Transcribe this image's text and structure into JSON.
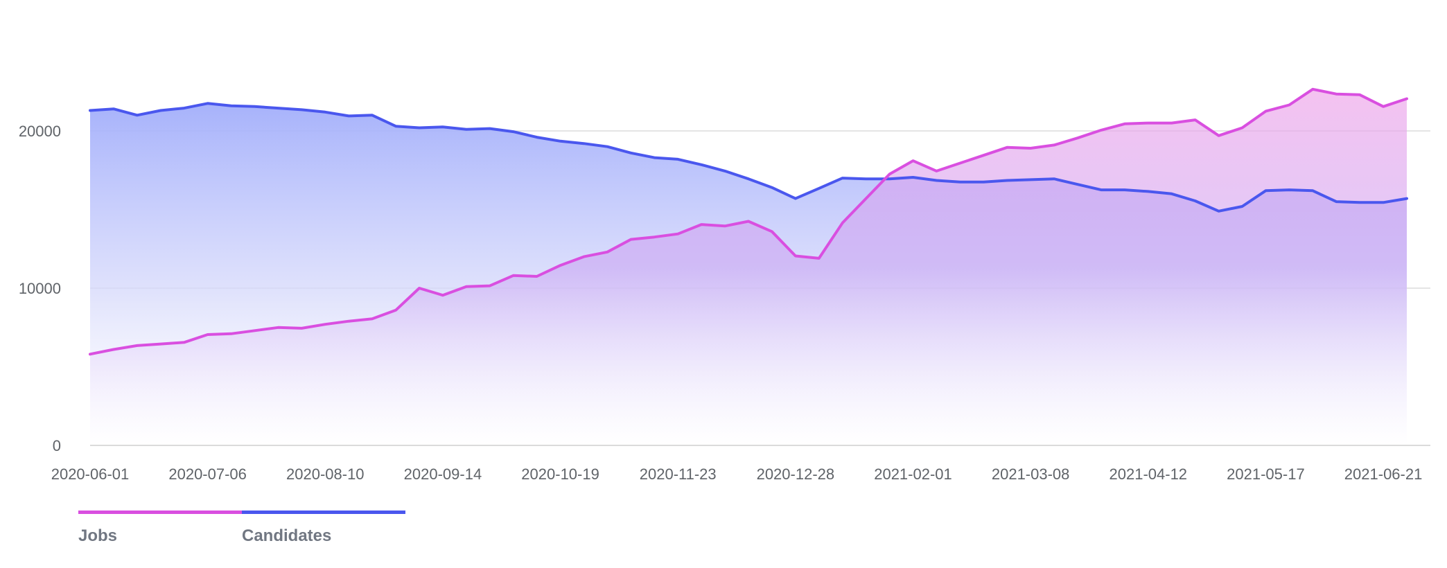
{
  "chart_data": {
    "type": "area",
    "title": "",
    "xlabel": "",
    "ylabel": "",
    "ylim": [
      0,
      26000
    ],
    "yticks": [
      0,
      10000,
      20000
    ],
    "grid": "horizontal",
    "legend_position": "bottom-left",
    "x_tick_labels": [
      "2020-06-01",
      "2020-07-06",
      "2020-08-10",
      "2020-09-14",
      "2020-10-19",
      "2020-11-23",
      "2020-12-28",
      "2021-02-01",
      "2021-03-08",
      "2021-04-12",
      "2021-05-17",
      "2021-06-21"
    ],
    "x": [
      "2020-06-01",
      "2020-06-08",
      "2020-06-15",
      "2020-06-22",
      "2020-06-29",
      "2020-07-06",
      "2020-07-13",
      "2020-07-20",
      "2020-07-27",
      "2020-08-03",
      "2020-08-10",
      "2020-08-17",
      "2020-08-24",
      "2020-08-31",
      "2020-09-07",
      "2020-09-14",
      "2020-09-21",
      "2020-09-28",
      "2020-10-05",
      "2020-10-12",
      "2020-10-19",
      "2020-10-26",
      "2020-11-02",
      "2020-11-09",
      "2020-11-16",
      "2020-11-23",
      "2020-11-30",
      "2020-12-07",
      "2020-12-14",
      "2020-12-21",
      "2020-12-28",
      "2021-01-04",
      "2021-01-11",
      "2021-01-18",
      "2021-01-25",
      "2021-02-01",
      "2021-02-08",
      "2021-02-15",
      "2021-02-22",
      "2021-03-01",
      "2021-03-08",
      "2021-03-15",
      "2021-03-22",
      "2021-03-29",
      "2021-04-05",
      "2021-04-12",
      "2021-04-19",
      "2021-04-26",
      "2021-05-03",
      "2021-05-10",
      "2021-05-17",
      "2021-05-24",
      "2021-05-31",
      "2021-06-07",
      "2021-06-14",
      "2021-06-21",
      "2021-06-28"
    ],
    "series": [
      {
        "name": "Jobs",
        "color": "#d94fe0",
        "values": [
          5800,
          6100,
          6350,
          6450,
          6550,
          7050,
          7100,
          7300,
          7500,
          7450,
          7700,
          7900,
          8050,
          8600,
          10000,
          9550,
          10100,
          10150,
          10800,
          10750,
          11450,
          12000,
          12300,
          13100,
          13250,
          13450,
          14050,
          13950,
          14250,
          13600,
          12050,
          11900,
          14150,
          15700,
          17250,
          18100,
          17450,
          17950,
          18450,
          18950,
          18900,
          19100,
          19550,
          20050,
          20450,
          20500,
          20500,
          20700,
          19700,
          20200,
          21250,
          21650,
          22650,
          22350,
          22300,
          21550,
          22050
        ]
      },
      {
        "name": "Candidates",
        "color": "#4a57ee",
        "values": [
          21300,
          21400,
          21000,
          21300,
          21450,
          21750,
          21600,
          21550,
          21450,
          21350,
          21200,
          20950,
          21000,
          20300,
          20200,
          20250,
          20100,
          20150,
          19950,
          19600,
          19350,
          19200,
          19000,
          18600,
          18300,
          18200,
          17850,
          17450,
          16950,
          16400,
          15700,
          16350,
          17000,
          16950,
          16950,
          17050,
          16850,
          16750,
          16750,
          16850,
          16900,
          16950,
          16600,
          16250,
          16250,
          16150,
          16000,
          15550,
          14900,
          15200,
          16200,
          16250,
          16200,
          15500,
          15450,
          15450,
          15700
        ]
      }
    ]
  }
}
